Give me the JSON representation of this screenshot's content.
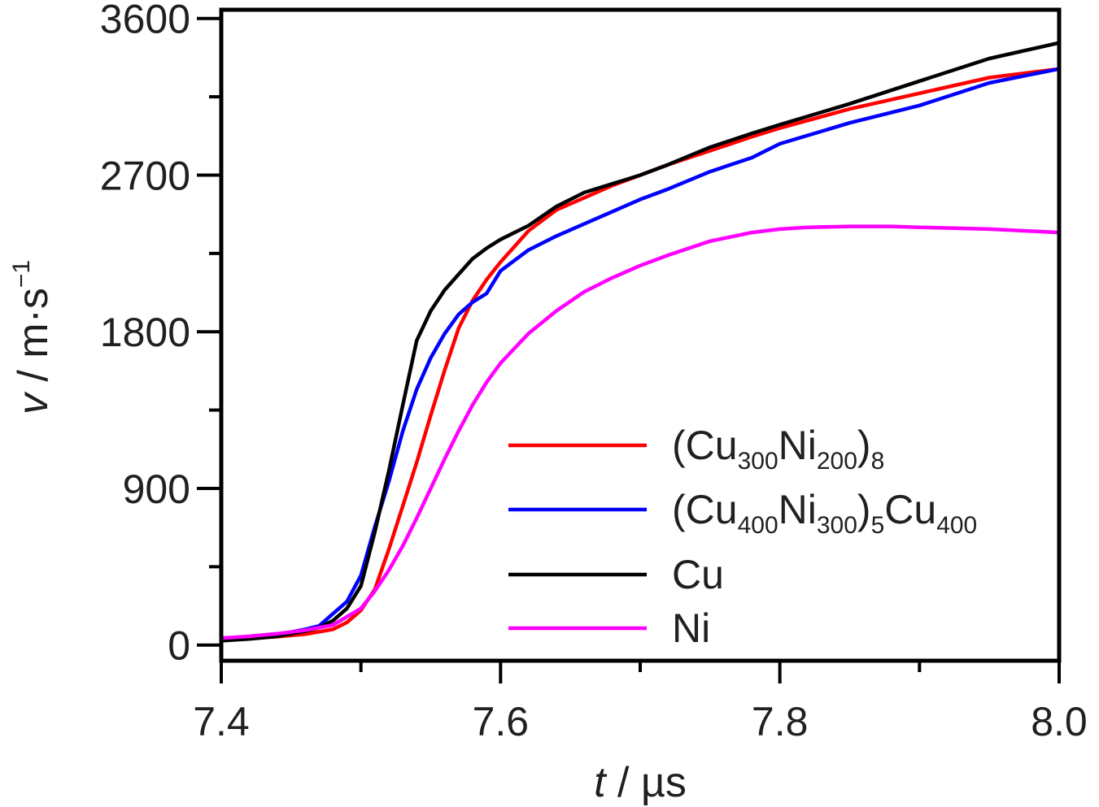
{
  "chart_data": {
    "type": "line",
    "xlabel": {
      "var": "t",
      "rest": " / µs"
    },
    "ylabel": {
      "var": "v",
      "rest": " / m·s",
      "sup": "−1"
    },
    "xlim": [
      7.4,
      8.0
    ],
    "ylim": [
      -90,
      3650
    ],
    "xticks": [
      7.4,
      7.6,
      7.8,
      8.0
    ],
    "xtick_labels": [
      "7.4",
      "7.6",
      "7.8",
      "8.0"
    ],
    "yticks": [
      0,
      900,
      1800,
      2700,
      3600
    ],
    "ytick_labels": [
      "0",
      "900",
      "1800",
      "2700",
      "3600"
    ],
    "grid": false,
    "legend_position": "lower-right",
    "legend": [
      {
        "parts": [
          {
            "t": "(Cu"
          },
          {
            "t": "300",
            "sub": true
          },
          {
            "t": "Ni"
          },
          {
            "t": "200",
            "sub": true
          },
          {
            "t": ")"
          },
          {
            "t": "8",
            "sub": true
          }
        ],
        "color": "#ff0000"
      },
      {
        "parts": [
          {
            "t": "(Cu"
          },
          {
            "t": "400",
            "sub": true
          },
          {
            "t": "Ni"
          },
          {
            "t": "300",
            "sub": true
          },
          {
            "t": ")"
          },
          {
            "t": "5",
            "sub": true
          },
          {
            "t": "Cu"
          },
          {
            "t": "400",
            "sub": true
          }
        ],
        "color": "#0000ff"
      },
      {
        "parts": [
          {
            "t": "Cu"
          }
        ],
        "color": "#000000"
      },
      {
        "parts": [
          {
            "t": "Ni"
          }
        ],
        "color": "#ff00ff"
      }
    ],
    "series": [
      {
        "color": "#ff0000",
        "x": [
          7.4,
          7.42,
          7.44,
          7.46,
          7.48,
          7.49,
          7.5,
          7.51,
          7.52,
          7.53,
          7.54,
          7.55,
          7.56,
          7.57,
          7.58,
          7.59,
          7.6,
          7.62,
          7.64,
          7.66,
          7.68,
          7.7,
          7.72,
          7.75,
          7.78,
          7.8,
          7.85,
          7.9,
          7.95,
          8.0
        ],
        "y": [
          30,
          38,
          48,
          62,
          90,
          130,
          200,
          320,
          550,
          800,
          1050,
          1320,
          1580,
          1820,
          1980,
          2100,
          2200,
          2380,
          2500,
          2570,
          2640,
          2700,
          2760,
          2840,
          2920,
          2970,
          3080,
          3170,
          3260,
          3310
        ]
      },
      {
        "color": "#0000ff",
        "x": [
          7.4,
          7.42,
          7.44,
          7.46,
          7.47,
          7.48,
          7.49,
          7.5,
          7.51,
          7.52,
          7.53,
          7.54,
          7.55,
          7.56,
          7.57,
          7.58,
          7.59,
          7.6,
          7.62,
          7.64,
          7.66,
          7.68,
          7.7,
          7.72,
          7.75,
          7.78,
          7.8,
          7.85,
          7.9,
          7.95,
          8.0
        ],
        "y": [
          40,
          45,
          60,
          90,
          110,
          180,
          250,
          400,
          680,
          940,
          1230,
          1470,
          1650,
          1790,
          1900,
          1970,
          2020,
          2150,
          2270,
          2350,
          2420,
          2490,
          2560,
          2620,
          2720,
          2800,
          2880,
          3000,
          3100,
          3230,
          3310
        ]
      },
      {
        "color": "#000000",
        "x": [
          7.4,
          7.42,
          7.44,
          7.46,
          7.47,
          7.48,
          7.49,
          7.5,
          7.51,
          7.52,
          7.53,
          7.54,
          7.55,
          7.56,
          7.57,
          7.58,
          7.59,
          7.6,
          7.62,
          7.64,
          7.66,
          7.68,
          7.7,
          7.72,
          7.75,
          7.78,
          7.8,
          7.85,
          7.9,
          7.95,
          8.0
        ],
        "y": [
          25,
          35,
          50,
          80,
          100,
          140,
          210,
          340,
          650,
          1000,
          1380,
          1750,
          1920,
          2040,
          2130,
          2220,
          2280,
          2330,
          2410,
          2520,
          2600,
          2650,
          2700,
          2760,
          2860,
          2940,
          2990,
          3110,
          3240,
          3370,
          3460
        ]
      },
      {
        "color": "#ff00ff",
        "x": [
          7.4,
          7.42,
          7.44,
          7.46,
          7.48,
          7.5,
          7.51,
          7.52,
          7.53,
          7.54,
          7.55,
          7.56,
          7.57,
          7.58,
          7.59,
          7.6,
          7.62,
          7.64,
          7.66,
          7.68,
          7.7,
          7.72,
          7.75,
          7.78,
          7.8,
          7.82,
          7.85,
          7.88,
          7.9,
          7.95,
          8.0
        ],
        "y": [
          40,
          50,
          65,
          85,
          115,
          210,
          310,
          430,
          570,
          730,
          900,
          1070,
          1230,
          1380,
          1510,
          1620,
          1790,
          1920,
          2030,
          2110,
          2180,
          2240,
          2320,
          2370,
          2390,
          2400,
          2405,
          2405,
          2400,
          2390,
          2370
        ]
      }
    ]
  }
}
